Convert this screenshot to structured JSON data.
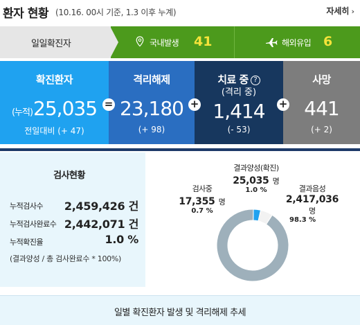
{
  "header": {
    "title": "환자 현황",
    "subtitle": "(10.16. 00시 기준, 1.3 이후 누계)",
    "detail_label": "자세히",
    "detail_arrow": "›"
  },
  "daily": {
    "label": "일일확진자",
    "domestic_label": "국내발생",
    "domestic_value": "41",
    "overseas_label": "해외유입",
    "overseas_value": "6"
  },
  "summary": {
    "confirmed": {
      "label": "확진환자",
      "prefix": "(누적)",
      "value": "25,035",
      "change": "전일대비 (+ 47)"
    },
    "released": {
      "label": "격리해제",
      "value": "23,180",
      "change": "(+ 98)"
    },
    "treating": {
      "label": "치료 중",
      "sublabel": "(격리 중)",
      "value": "1,414",
      "change": "(- 53)"
    },
    "deaths": {
      "label": "사망",
      "value": "441",
      "change": "(+ 2)"
    },
    "operators": {
      "eq": "=",
      "plus": "+"
    }
  },
  "tests": {
    "title": "검사현황",
    "rows": [
      {
        "label": "누적검사수",
        "value": "2,459,426 건"
      },
      {
        "label": "누적검사완료수",
        "value": "2,442,071 건"
      },
      {
        "label": "누적확진율",
        "value": "1.0 %"
      }
    ],
    "note": "(결과양성 / 총 검사완료수 * 100%)"
  },
  "pie_labels": {
    "testing": {
      "name": "검사중",
      "count": "17,355",
      "unit": "명",
      "pct": "0.7 %"
    },
    "positive": {
      "name": "결과양성(확진)",
      "count": "25,035",
      "unit": "명",
      "pct": "1.0 %"
    },
    "negative": {
      "name": "결과음성",
      "count": "2,417,036",
      "unit": "명",
      "pct": "98.3 %"
    }
  },
  "chart_data": {
    "type": "pie",
    "categories": [
      "검사중",
      "결과양성(확진)",
      "결과음성"
    ],
    "values": [
      17355,
      25035,
      2417036
    ],
    "colors": [
      "#f2f2f2",
      "#1fa2f0",
      "#9eb0bb"
    ]
  },
  "colors": {
    "accent_blue": "#1fa2f0",
    "released_blue": "#2a6ec1",
    "treating_navy": "#17375e",
    "death_gray": "#7d7d7d",
    "green": "#4c9a1c",
    "yellow": "#f5e33a"
  },
  "icons": {
    "pin": "map-pin-icon",
    "plane": "plane-icon",
    "help": "help-circle-icon"
  },
  "footer": {
    "label": "일별 확진환자 발생 및 격리해제 추세"
  }
}
